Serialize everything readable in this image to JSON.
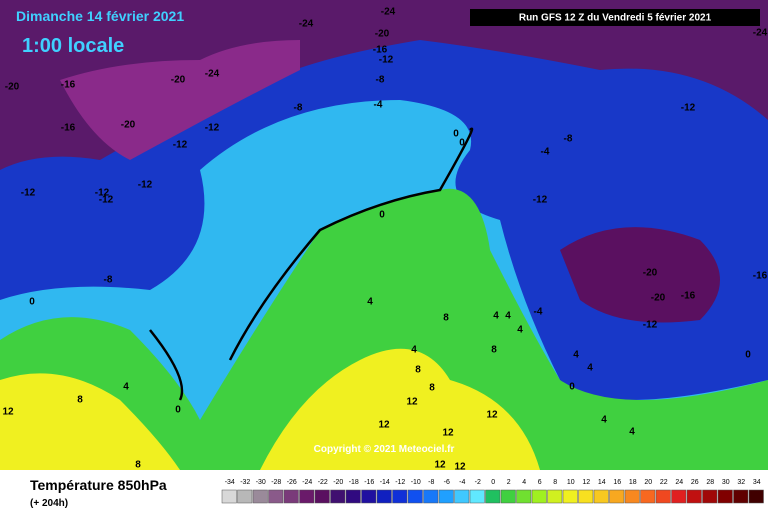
{
  "header": {
    "date": "Dimanche 14 février 2021",
    "time": "1:00 locale",
    "run": "Run GFS 12 Z du Vendredi 5 février 2021"
  },
  "footer": {
    "title": "Température 850hPa",
    "lead": "(+ 204h)",
    "copyright": "Copyright © 2021 Meteociel.fr"
  },
  "contour_labels": [
    -24,
    -24,
    -20,
    -16,
    -12,
    -24,
    -20,
    -16,
    -20,
    -24,
    -16,
    -20,
    -12,
    -12,
    -8,
    -8,
    -4,
    -12,
    -8,
    -4,
    0,
    0,
    -12,
    -12,
    -12,
    -12,
    -12,
    0,
    -8,
    0,
    -20,
    -20,
    -16,
    -16,
    -12,
    4,
    8,
    4,
    4,
    -4,
    4,
    4,
    8,
    8,
    8,
    4,
    4,
    0,
    0,
    4,
    8,
    12,
    0,
    12,
    12,
    12,
    12,
    4,
    4,
    8,
    12,
    12
  ],
  "colorbar": {
    "ticks": [
      -34,
      -32,
      -30,
      -28,
      -26,
      -24,
      -22,
      -20,
      -18,
      -16,
      -14,
      -12,
      -10,
      -8,
      -6,
      -4,
      -2,
      0,
      2,
      4,
      6,
      8,
      10,
      12,
      14,
      16,
      18,
      20,
      22,
      24,
      26,
      28,
      30,
      32,
      34
    ],
    "colors": [
      "#d8d8d8",
      "#b8b8b8",
      "#9a8a9a",
      "#8a5a8a",
      "#7a3a7a",
      "#6a1a6a",
      "#5a1060",
      "#401070",
      "#300a80",
      "#2010a0",
      "#1020c0",
      "#1030d8",
      "#1050f0",
      "#1878f8",
      "#20a0ff",
      "#40c8ff",
      "#60e8ff",
      "#20c060",
      "#40d040",
      "#70e030",
      "#a0f020",
      "#d0f020",
      "#f0f020",
      "#f8e020",
      "#f8c820",
      "#f8a820",
      "#f88820",
      "#f86820",
      "#f04820",
      "#e02020",
      "#c01010",
      "#a00808",
      "#800000",
      "#600000",
      "#400000"
    ]
  }
}
